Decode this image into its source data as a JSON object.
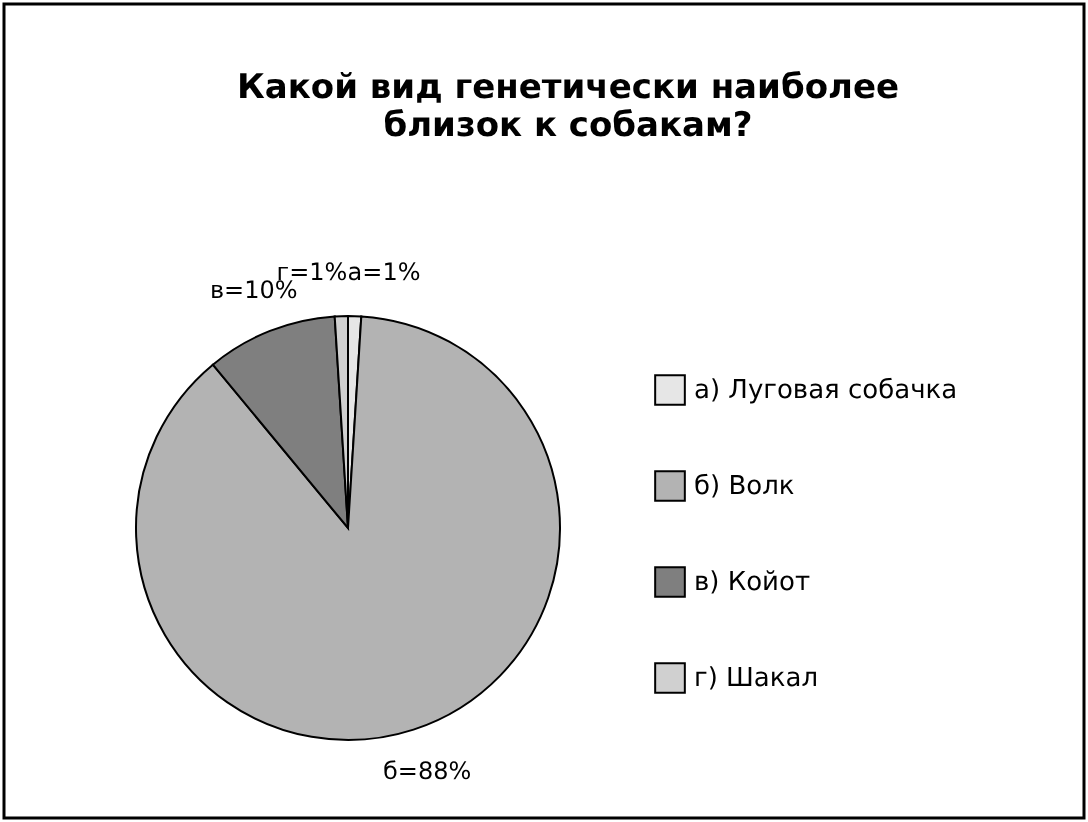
{
  "chart_data": {
    "type": "pie",
    "title": "Какой вид генетически наиболее\nблизок к собакам?",
    "categories": [
      "а) Луговая собачка",
      "б) Волк",
      "в) Койот",
      "г) Шакал"
    ],
    "values": [
      1,
      88,
      10,
      1
    ],
    "colors": [
      "#e6e6e6",
      "#b3b3b3",
      "#7f7f7f",
      "#d0d0d0"
    ],
    "value_labels": [
      "а=1%",
      "б=88%",
      "в=10%",
      "г=1%"
    ],
    "legend": "right"
  }
}
